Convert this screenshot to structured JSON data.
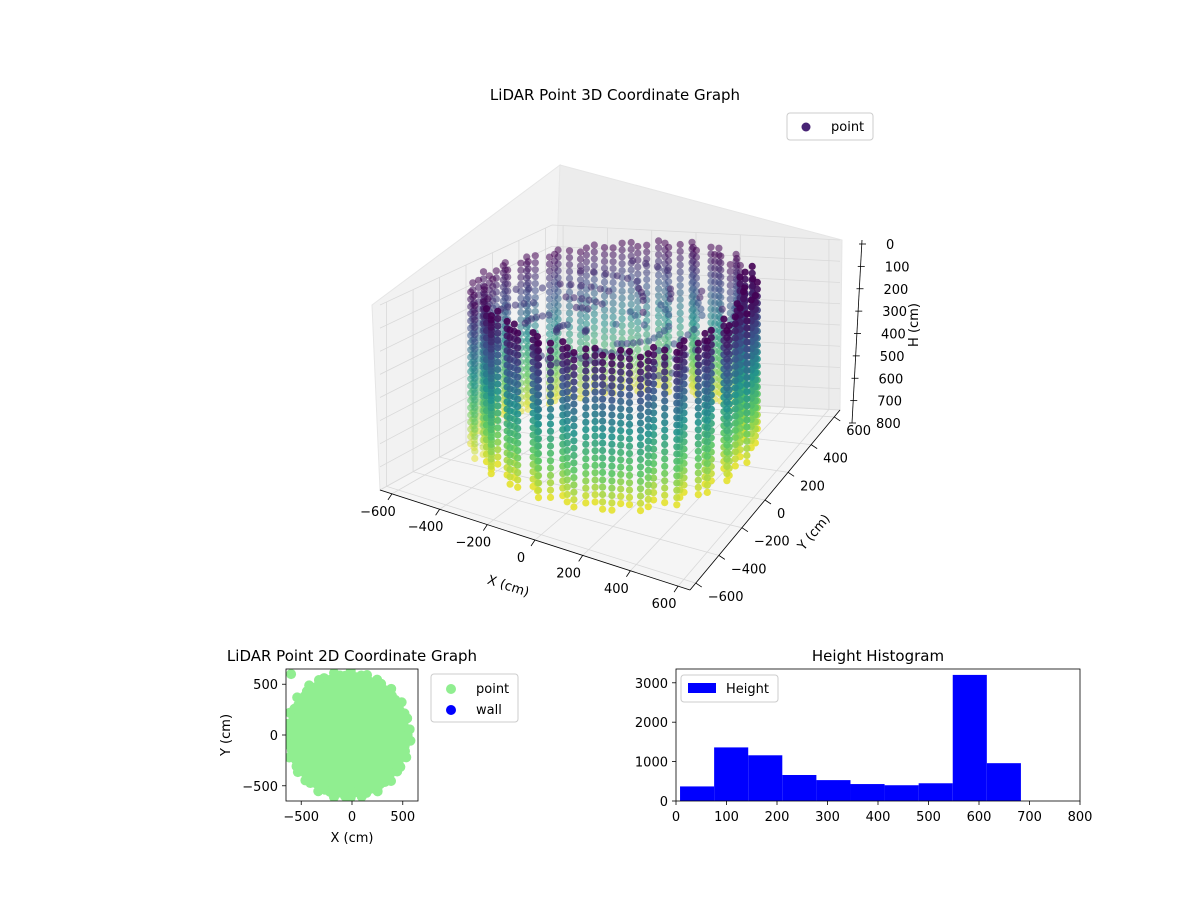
{
  "chart_data": [
    {
      "type": "scatter",
      "projection": "3d",
      "title": "LiDAR Point 3D Coordinate Graph",
      "xlabel": "X (cm)",
      "ylabel": "Y (cm)",
      "zlabel": "H (cm)",
      "xlim": [
        -650,
        650
      ],
      "ylim": [
        -650,
        650
      ],
      "zlim": [
        800,
        0
      ],
      "z_inverted": true,
      "xticks": [
        "−600",
        "−400",
        "−200",
        "0",
        "200",
        "400",
        "600"
      ],
      "yticks": [
        "−600",
        "−400",
        "−200",
        "0",
        "200",
        "400",
        "600"
      ],
      "zticks": [
        "0",
        "100",
        "200",
        "300",
        "400",
        "500",
        "600",
        "700",
        "800"
      ],
      "xtick_values": [
        -600,
        -400,
        -200,
        0,
        200,
        400,
        600
      ],
      "ytick_values": [
        -600,
        -400,
        -200,
        0,
        200,
        400,
        600
      ],
      "ztick_values": [
        0,
        100,
        200,
        300,
        400,
        500,
        600,
        700,
        800
      ],
      "colormap": "viridis",
      "colormap_stops": [
        "#440154",
        "#3b528b",
        "#21918c",
        "#5ec962",
        "#fde725"
      ],
      "series": [
        {
          "name": "point",
          "legend_color": "#482475",
          "shape": "cylindrical wall of vertical scan lines",
          "approx_radius": 560,
          "height_range": [
            0,
            700
          ]
        }
      ],
      "grid": true,
      "legend_position": "upper right"
    },
    {
      "type": "scatter",
      "title": "LiDAR Point 2D Coordinate Graph",
      "xlabel": "X (cm)",
      "ylabel": "Y (cm)",
      "xlim": [
        -650,
        650
      ],
      "ylim": [
        -650,
        650
      ],
      "xticks": [
        "−500",
        "0",
        "500"
      ],
      "yticks": [
        "−500",
        "0",
        "500"
      ],
      "xtick_values": [
        -500,
        0,
        500
      ],
      "ytick_values": [
        -500,
        0,
        500
      ],
      "series": [
        {
          "name": "point",
          "color": "#90ee90",
          "shape": "filled disk",
          "approx_radius": 600
        },
        {
          "name": "wall",
          "color": "#0000ff",
          "values": []
        }
      ],
      "legend_position": "outside right"
    },
    {
      "type": "bar",
      "subtype": "histogram",
      "title": "Height Histogram",
      "xlim": [
        0,
        800
      ],
      "ylim": [
        0,
        3350
      ],
      "xticks": [
        "0",
        "100",
        "200",
        "300",
        "400",
        "500",
        "600",
        "700",
        "800"
      ],
      "yticks": [
        "0",
        "1000",
        "2000",
        "3000"
      ],
      "xtick_values": [
        0,
        100,
        200,
        300,
        400,
        500,
        600,
        700,
        800
      ],
      "ytick_values": [
        0,
        1000,
        2000,
        3000
      ],
      "bin_edges": [
        8,
        75.5,
        143,
        210.5,
        278,
        345.5,
        413,
        480.5,
        548,
        615.5,
        683
      ],
      "values": [
        370,
        1360,
        1160,
        660,
        530,
        430,
        400,
        450,
        3200,
        960
      ],
      "series": [
        {
          "name": "Height",
          "color": "#0000ff"
        }
      ],
      "legend_position": "upper left"
    }
  ]
}
